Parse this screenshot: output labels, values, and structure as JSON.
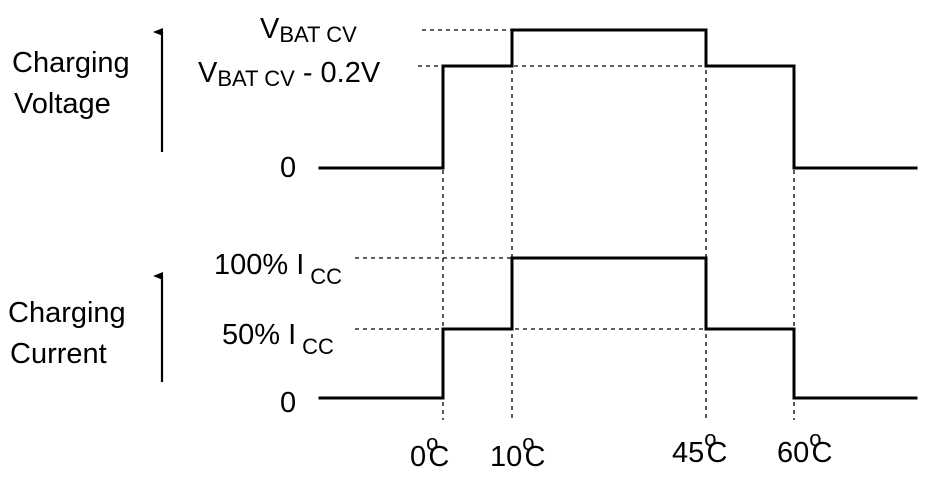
{
  "voltage_axis": {
    "label_line1": "Charging",
    "label_line2": "Voltage",
    "level_top": {
      "main": "V",
      "sub": "BAT CV"
    },
    "level_mid": {
      "main": "V",
      "sub": "BAT CV",
      "suffix": " - 0.2V"
    },
    "level_zero": "0"
  },
  "current_axis": {
    "label_line1": "Charging",
    "label_line2": "Current",
    "level_top": {
      "main": "100% I",
      "sub": "CC"
    },
    "level_mid": {
      "main": "50% I",
      "sub": "CC"
    },
    "level_zero": "0"
  },
  "temperature_labels": [
    {
      "num": "0",
      "deg": "o",
      "unit": "C"
    },
    {
      "num": "10",
      "deg": "o",
      "unit": "C"
    },
    {
      "num": "45",
      "deg": "o",
      "unit": "C"
    },
    {
      "num": "60",
      "deg": "o",
      "unit": "C"
    }
  ]
}
